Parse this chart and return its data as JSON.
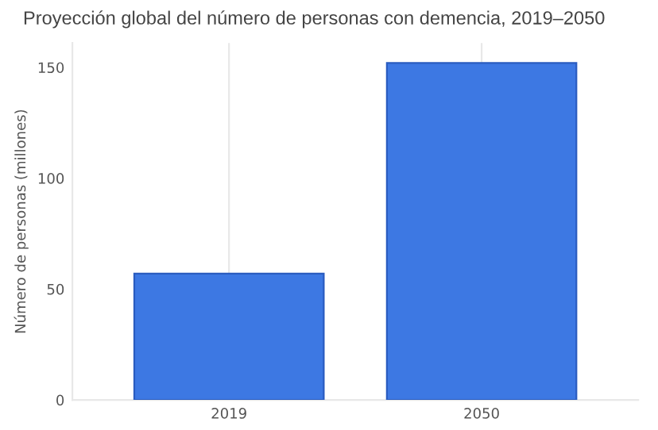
{
  "chart_data": {
    "type": "bar",
    "title": "Proyección global del número de personas con demencia, 2019–2050",
    "ylabel": "Número de personas (millones)",
    "categories": [
      "2019",
      "2050"
    ],
    "values": [
      57,
      152
    ],
    "color": "#3d78e3",
    "ylim": [
      0,
      161
    ],
    "yticks": [
      0,
      50,
      100,
      150
    ],
    "grid": "x"
  }
}
